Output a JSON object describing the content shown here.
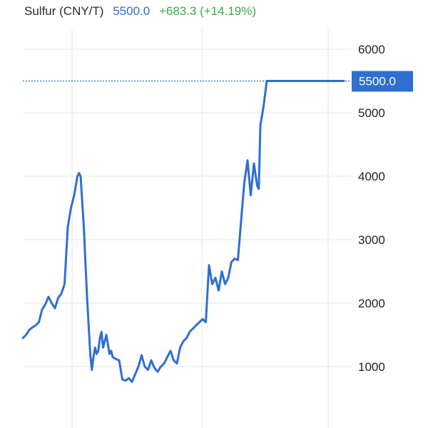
{
  "header": {
    "title": "Sulfur (CNY/T)",
    "price": "5500.0",
    "change": "+683.3 (+14.19%)"
  },
  "colors": {
    "line": "#2f6fd1",
    "grid": "#e6e6e6",
    "badge": "#2f6fd1",
    "change_positive": "#3aa84a"
  },
  "chart_data": {
    "type": "line",
    "title": "Sulfur (CNY/T)",
    "xlabel": "",
    "ylabel": "",
    "ylim": [
      750,
      6250
    ],
    "y_ticks": [
      1000,
      2000,
      3000,
      4000,
      5000,
      6000
    ],
    "grid": true,
    "current_value": 5500.0,
    "current_label": "5500.0",
    "series": [
      {
        "x": [
          0,
          0.01,
          0.02,
          0.03,
          0.04,
          0.05,
          0.06,
          0.07,
          0.08,
          0.09,
          0.1,
          0.11,
          0.12,
          0.13,
          0.14,
          0.15,
          0.16,
          0.17,
          0.175,
          0.18,
          0.19,
          0.2,
          0.21,
          0.215,
          0.22,
          0.225,
          0.23,
          0.235,
          0.24,
          0.245,
          0.25,
          0.255,
          0.26,
          0.265,
          0.27,
          0.275,
          0.28,
          0.29,
          0.3,
          0.31,
          0.32,
          0.33,
          0.34,
          0.35,
          0.36,
          0.37,
          0.38,
          0.39,
          0.4,
          0.41,
          0.42,
          0.43,
          0.44,
          0.45,
          0.46,
          0.47,
          0.48,
          0.49,
          0.5,
          0.51,
          0.52,
          0.53,
          0.54,
          0.55,
          0.56,
          0.57,
          0.58,
          0.59,
          0.6,
          0.61,
          0.62,
          0.63,
          0.64,
          0.65,
          0.66,
          0.67,
          0.68,
          0.69,
          0.7,
          0.71,
          0.72,
          0.73,
          0.735,
          0.74,
          0.75,
          0.76,
          0.77,
          0.78,
          0.79,
          0.8,
          0.81,
          0.82,
          0.83,
          0.84,
          0.85,
          0.86,
          0.87,
          0.88,
          0.89,
          0.9,
          0.91,
          0.92,
          0.93,
          0.94,
          0.95,
          0.96,
          0.97,
          0.98,
          0.99,
          1.0
        ],
        "values": [
          1450,
          1500,
          1580,
          1620,
          1650,
          1700,
          1900,
          1980,
          2100,
          2000,
          1920,
          2080,
          2150,
          2300,
          3200,
          3500,
          3700,
          4000,
          4050,
          4000,
          3200,
          2100,
          1200,
          950,
          1150,
          1300,
          1200,
          1250,
          1450,
          1550,
          1300,
          1400,
          1500,
          1350,
          1200,
          1250,
          1150,
          1120,
          1100,
          800,
          780,
          820,
          760,
          880,
          1000,
          1180,
          1000,
          950,
          1100,
          980,
          920,
          1000,
          1050,
          1150,
          1250,
          1100,
          1050,
          1300,
          1400,
          1450,
          1550,
          1600,
          1650,
          1700,
          1750,
          1700,
          2600,
          2300,
          2400,
          2200,
          2500,
          2300,
          2400,
          2650,
          2700,
          2680,
          3300,
          3900,
          4250,
          3700,
          4200,
          3850,
          3800,
          4800,
          5100,
          5500,
          5500,
          5500,
          5500,
          5500,
          5500,
          5500,
          5500,
          5500,
          5500,
          5500,
          5500,
          5500,
          5500,
          5500,
          5500,
          5500,
          5500,
          5500,
          5500,
          5500,
          5500,
          5500,
          5500,
          5500
        ]
      }
    ]
  }
}
